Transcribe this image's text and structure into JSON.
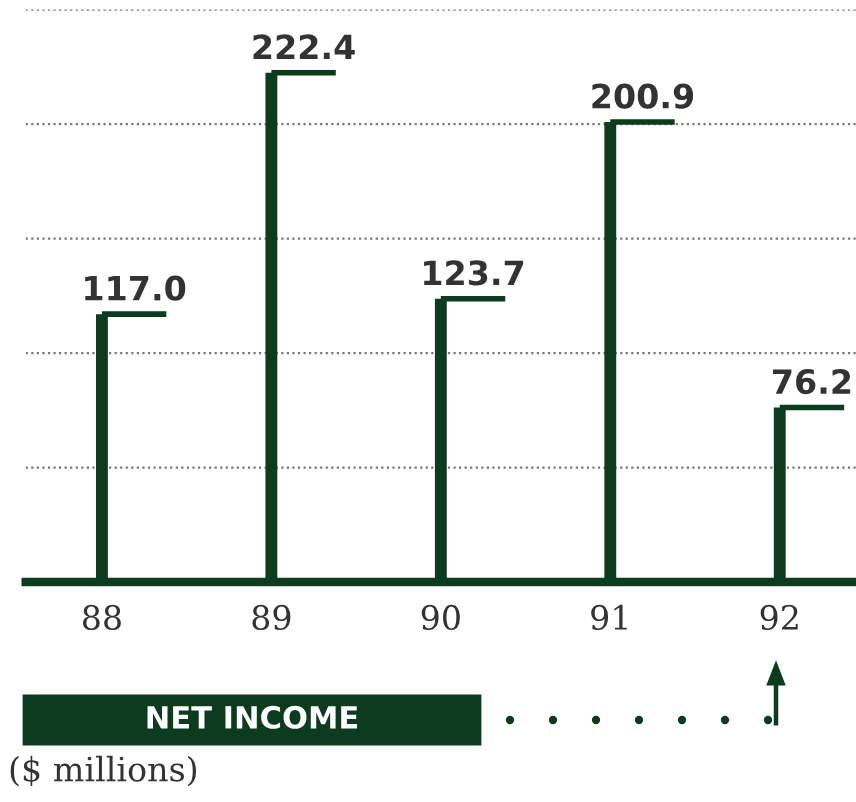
{
  "chart_data": {
    "type": "bar",
    "title": "NET INCOME",
    "annotations": [
      "($ millions)"
    ],
    "categories": [
      "88",
      "89",
      "90",
      "91",
      "92"
    ],
    "values": [
      117.0,
      222.4,
      123.7,
      200.9,
      76.2
    ],
    "value_labels": [
      "117.0",
      "222.4",
      "123.7",
      "200.9",
      "76.2"
    ],
    "color": "#0d3b1f",
    "yticks": [
      {
        "value": 50,
        "label": null
      },
      {
        "value": 100,
        "label": null
      },
      {
        "value": 150,
        "label": null
      },
      {
        "value": 200,
        "label": null
      },
      {
        "value": 250,
        "label": null
      }
    ],
    "grid": "y",
    "tick_labels": "x"
  }
}
